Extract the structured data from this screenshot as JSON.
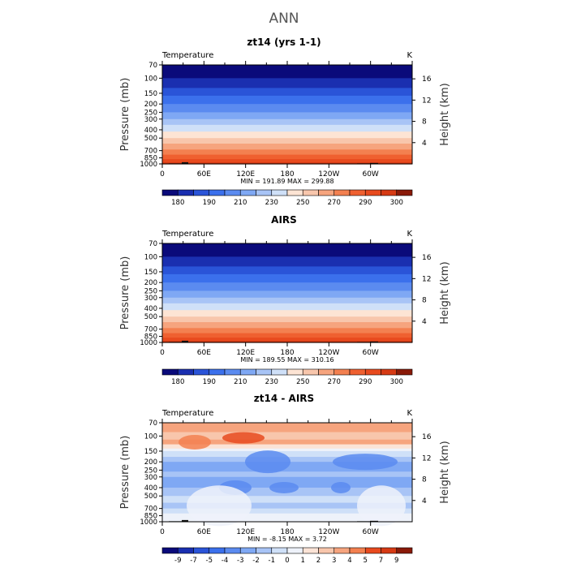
{
  "page_title": "ANN",
  "colors": {
    "temp_palette": [
      "#0a0a7a",
      "#1a2fb0",
      "#2a54d8",
      "#3b70ec",
      "#5b8bf0",
      "#7fa8f4",
      "#a8c4f6",
      "#cfe0f8",
      "#fde4d4",
      "#f8c6ac",
      "#f6a47e",
      "#f38050",
      "#ef6030",
      "#e84a1e",
      "#d63a14",
      "#8a1a08"
    ],
    "diff_palette": [
      "#0a0a7a",
      "#1a2fb0",
      "#2a54d8",
      "#3b70ec",
      "#5b8bf0",
      "#7fa8f4",
      "#a8c4f6",
      "#cfe0f8",
      "#eef2fa",
      "#fbe3d6",
      "#f8c6ac",
      "#f6a47e",
      "#f38050",
      "#e84a1e",
      "#d63a14",
      "#8a1a08"
    ],
    "terrain": "#111111"
  },
  "chart_data": [
    {
      "type": "heatmap",
      "title": "zt14 (yrs 1-1)",
      "variable_label": "Temperature",
      "units": "K",
      "ylabel": "Pressure (mb)",
      "right_ylabel": "Height (km)",
      "x_ticks": [
        "0",
        "60E",
        "120E",
        "180",
        "120W",
        "60W"
      ],
      "x_tick_lons": [
        0,
        60,
        120,
        180,
        240,
        300
      ],
      "x_range": [
        0,
        360
      ],
      "pressure_ticks": [
        70,
        100,
        150,
        200,
        250,
        300,
        400,
        500,
        700,
        850,
        1000
      ],
      "pressure_range": [
        70,
        1000
      ],
      "height_ticks": [
        4,
        8,
        12,
        16
      ],
      "stats_text": "MIN = 191.89   MAX = 299.88",
      "min": 191.89,
      "max": 299.88,
      "colorbar_levels": [
        180,
        190,
        210,
        230,
        250,
        270,
        290,
        300
      ],
      "colorbar_ticks": [
        "180",
        "190",
        "210",
        "230",
        "250",
        "270",
        "290",
        "300"
      ],
      "profile_by_pressure": [
        [
          70,
          0
        ],
        [
          100,
          1
        ],
        [
          130,
          2
        ],
        [
          160,
          3
        ],
        [
          200,
          4
        ],
        [
          250,
          5
        ],
        [
          300,
          6
        ],
        [
          350,
          7
        ],
        [
          420,
          8
        ],
        [
          500,
          9
        ],
        [
          580,
          10
        ],
        [
          680,
          11
        ],
        [
          780,
          12
        ],
        [
          880,
          13
        ],
        [
          960,
          14
        ],
        [
          1000,
          15
        ]
      ]
    },
    {
      "type": "heatmap",
      "title": "AIRS",
      "variable_label": "Temperature",
      "units": "K",
      "ylabel": "Pressure (mb)",
      "right_ylabel": "Height (km)",
      "x_ticks": [
        "0",
        "60E",
        "120E",
        "180",
        "120W",
        "60W"
      ],
      "x_tick_lons": [
        0,
        60,
        120,
        180,
        240,
        300
      ],
      "x_range": [
        0,
        360
      ],
      "pressure_ticks": [
        70,
        100,
        150,
        200,
        250,
        300,
        400,
        500,
        700,
        850,
        1000
      ],
      "pressure_range": [
        70,
        1000
      ],
      "height_ticks": [
        4,
        8,
        12,
        16
      ],
      "stats_text": "MIN = 189.55   MAX = 310.16",
      "min": 189.55,
      "max": 310.16,
      "colorbar_levels": [
        180,
        190,
        210,
        230,
        250,
        270,
        290,
        300
      ],
      "colorbar_ticks": [
        "180",
        "190",
        "210",
        "230",
        "250",
        "270",
        "290",
        "300"
      ],
      "profile_by_pressure": [
        [
          70,
          0
        ],
        [
          100,
          1
        ],
        [
          130,
          2
        ],
        [
          160,
          3
        ],
        [
          200,
          4
        ],
        [
          250,
          5
        ],
        [
          300,
          6
        ],
        [
          350,
          7
        ],
        [
          420,
          8
        ],
        [
          500,
          9
        ],
        [
          580,
          10
        ],
        [
          680,
          11
        ],
        [
          780,
          12
        ],
        [
          880,
          13
        ],
        [
          960,
          14
        ],
        [
          1000,
          15
        ]
      ]
    },
    {
      "type": "heatmap",
      "title": "zt14 - AIRS",
      "variable_label": "Temperature",
      "units": "K",
      "ylabel": "Pressure (mb)",
      "right_ylabel": "Height (km)",
      "x_ticks": [
        "0",
        "60E",
        "120E",
        "180",
        "120W",
        "60W"
      ],
      "x_tick_lons": [
        0,
        60,
        120,
        180,
        240,
        300
      ],
      "x_range": [
        0,
        360
      ],
      "pressure_ticks": [
        70,
        100,
        150,
        200,
        250,
        300,
        400,
        500,
        700,
        850,
        1000
      ],
      "pressure_range": [
        70,
        1000
      ],
      "height_ticks": [
        4,
        8,
        12,
        16
      ],
      "stats_text": "MIN =   -8.15   MAX =   3.72",
      "min": -8.15,
      "max": 3.72,
      "colorbar_levels": [
        -9,
        -7,
        -5,
        -4,
        -3,
        -2,
        -1,
        0,
        1,
        2,
        3,
        4,
        5,
        7,
        9
      ],
      "colorbar_ticks": [
        "-9",
        "-7",
        "-5",
        "-4",
        "-3",
        "-2",
        "-1",
        "0",
        "1",
        "2",
        "3",
        "4",
        "5",
        "7",
        "9"
      ],
      "profile_by_pressure": [
        [
          70,
          11
        ],
        [
          90,
          10
        ],
        [
          110,
          11
        ],
        [
          125,
          9
        ],
        [
          140,
          8
        ],
        [
          150,
          7
        ],
        [
          175,
          6
        ],
        [
          200,
          5
        ],
        [
          230,
          5
        ],
        [
          260,
          6
        ],
        [
          300,
          5
        ],
        [
          400,
          6
        ],
        [
          500,
          7
        ],
        [
          600,
          6
        ],
        [
          700,
          7
        ],
        [
          800,
          8
        ],
        [
          900,
          8
        ],
        [
          1000,
          9
        ]
      ]
    }
  ]
}
